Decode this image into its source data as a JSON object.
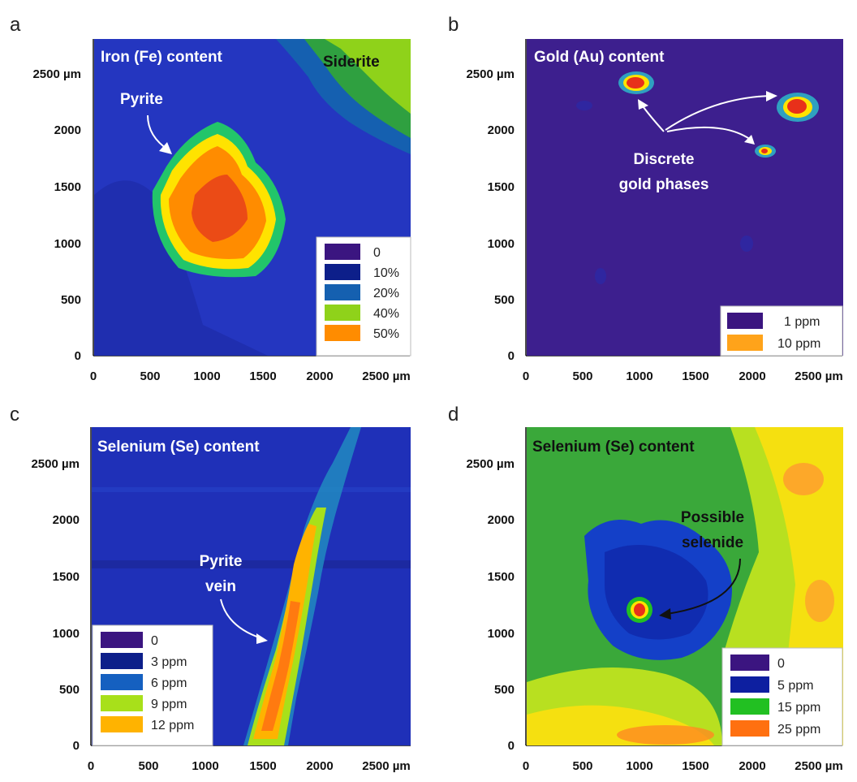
{
  "chart_data": [
    {
      "type": "heatmap",
      "panel_label": "a",
      "title": "Iron (Fe) content",
      "title_color": "#ffffff",
      "x_ticks": [
        "0",
        "500",
        "1000",
        "1500",
        "2000",
        "2500 µm"
      ],
      "y_ticks": [
        "0",
        "500",
        "1000",
        "1500",
        "2000",
        "2500  µm"
      ],
      "x_tick_values": [
        0,
        500,
        1000,
        1500,
        2000,
        2500
      ],
      "y_tick_values": [
        0,
        500,
        1000,
        1500,
        2000,
        2500
      ],
      "xlim": [
        0,
        2800
      ],
      "ylim": [
        0,
        2800
      ],
      "background": "#1f2fb8",
      "legend": [
        {
          "label": "0",
          "color": "#3b1580"
        },
        {
          "label": "10%",
          "color": "#0d1f8a"
        },
        {
          "label": "20%",
          "color": "#1560b0"
        },
        {
          "label": "40%",
          "color": "#8fd21a"
        },
        {
          "label": "50%",
          "color": "#ff8c00"
        }
      ],
      "features": [
        {
          "label": "Pyrite",
          "x": 1100,
          "y": 1300
        },
        {
          "label": "Siderite",
          "x": 2500,
          "y": 2500
        }
      ],
      "annotations": [
        {
          "text": "Pyrite",
          "x": 450,
          "y": 2260
        },
        {
          "text": "Siderite",
          "x": 2500,
          "y": 2620
        }
      ]
    },
    {
      "type": "heatmap",
      "panel_label": "b",
      "title": "Gold (Au) content",
      "title_color": "#ffffff",
      "x_ticks": [
        "0",
        "500",
        "1000",
        "1500",
        "2000",
        "2500 µm"
      ],
      "y_ticks": [
        "0",
        "500",
        "1000",
        "1500",
        "2000",
        "2500  µm"
      ],
      "x_tick_values": [
        0,
        500,
        1000,
        1500,
        2000,
        2500
      ],
      "y_tick_values": [
        0,
        500,
        1000,
        1500,
        2000,
        2500
      ],
      "xlim": [
        0,
        2800
      ],
      "ylim": [
        0,
        2800
      ],
      "background": "#3d1f8e",
      "legend": [
        {
          "label": "1 ppm",
          "color": "#3b1580"
        },
        {
          "label": "10 ppm",
          "color": "#ffa31a"
        }
      ],
      "features": [
        {
          "label": "gold phase",
          "x": 960,
          "y": 2420
        },
        {
          "label": "gold phase",
          "x": 2390,
          "y": 2200
        },
        {
          "label": "gold phase",
          "x": 2110,
          "y": 1800
        }
      ],
      "annotations": [
        {
          "text": "Discrete",
          "x": 1400,
          "y": 1820
        },
        {
          "text": "gold phases",
          "x": 1400,
          "y": 1600
        }
      ]
    },
    {
      "type": "heatmap",
      "panel_label": "c",
      "title": "Selenium (Se) content",
      "title_color": "#ffffff",
      "x_ticks": [
        "0",
        "500",
        "1000",
        "1500",
        "2000",
        "2500 µm"
      ],
      "y_ticks": [
        "0",
        "500",
        "1000",
        "1500",
        "2000",
        "2500  µm"
      ],
      "x_tick_values": [
        0,
        500,
        1000,
        1500,
        2000,
        2500
      ],
      "y_tick_values": [
        0,
        500,
        1000,
        1500,
        2000,
        2500
      ],
      "xlim": [
        0,
        2800
      ],
      "ylim": [
        0,
        2800
      ],
      "background": "#1a2db0",
      "legend": [
        {
          "label": "0",
          "color": "#3b1580"
        },
        {
          "label": "3 ppm",
          "color": "#0d1f8a"
        },
        {
          "label": "6 ppm",
          "color": "#1560c0"
        },
        {
          "label": "9 ppm",
          "color": "#a8e01a"
        },
        {
          "label": "12 ppm",
          "color": "#ffb300"
        }
      ],
      "features": [
        {
          "label": "Pyrite vein",
          "x": 1650,
          "y": 1000
        }
      ],
      "annotations": [
        {
          "text": "Pyrite",
          "x": 1140,
          "y": 1630
        },
        {
          "text": "vein",
          "x": 1140,
          "y": 1410
        }
      ]
    },
    {
      "type": "heatmap",
      "panel_label": "d",
      "title": "Selenium (Se) content",
      "title_color": "#111111",
      "x_ticks": [
        "0",
        "500",
        "1000",
        "1500",
        "2000",
        "2500 µm"
      ],
      "y_ticks": [
        "0",
        "500",
        "1000",
        "1500",
        "2000",
        "2500  µm"
      ],
      "x_tick_values": [
        0,
        500,
        1000,
        1500,
        2000,
        2500
      ],
      "y_tick_values": [
        0,
        500,
        1000,
        1500,
        2000,
        2500
      ],
      "xlim": [
        0,
        2800
      ],
      "ylim": [
        0,
        2800
      ],
      "background": "#3aa83a",
      "legend": [
        {
          "label": "0",
          "color": "#3b1580"
        },
        {
          "label": "5 ppm",
          "color": "#0d1fa0"
        },
        {
          "label": "15 ppm",
          "color": "#22c022"
        },
        {
          "label": "25 ppm",
          "color": "#ff7010"
        }
      ],
      "features": [
        {
          "label": "Possible selenide",
          "x": 990,
          "y": 1210
        }
      ],
      "annotations": [
        {
          "text": "Possible",
          "x": 1680,
          "y": 1950
        },
        {
          "text": "selenide",
          "x": 1680,
          "y": 1730
        }
      ]
    }
  ]
}
